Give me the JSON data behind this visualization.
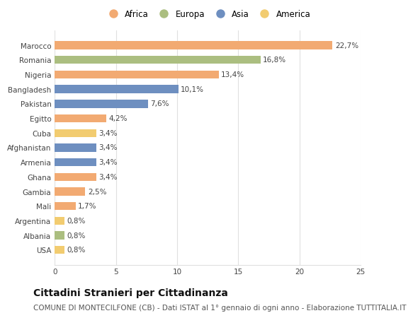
{
  "countries": [
    "Marocco",
    "Romania",
    "Nigeria",
    "Bangladesh",
    "Pakistan",
    "Egitto",
    "Cuba",
    "Afghanistan",
    "Armenia",
    "Ghana",
    "Gambia",
    "Mali",
    "Argentina",
    "Albania",
    "USA"
  ],
  "values": [
    22.7,
    16.8,
    13.4,
    10.1,
    7.6,
    4.2,
    3.4,
    3.4,
    3.4,
    3.4,
    2.5,
    1.7,
    0.8,
    0.8,
    0.8
  ],
  "labels": [
    "22,7%",
    "16,8%",
    "13,4%",
    "10,1%",
    "7,6%",
    "4,2%",
    "3,4%",
    "3,4%",
    "3,4%",
    "3,4%",
    "2,5%",
    "1,7%",
    "0,8%",
    "0,8%",
    "0,8%"
  ],
  "continents": [
    "Africa",
    "Europa",
    "Africa",
    "Asia",
    "Asia",
    "Africa",
    "America",
    "Asia",
    "Asia",
    "Africa",
    "Africa",
    "Africa",
    "America",
    "Europa",
    "America"
  ],
  "continent_colors": {
    "Africa": "#F2AA72",
    "Europa": "#ABBE80",
    "Asia": "#6E8FC0",
    "America": "#F2CC70"
  },
  "legend_order": [
    "Africa",
    "Europa",
    "Asia",
    "America"
  ],
  "background_color": "#ffffff",
  "title": "Cittadini Stranieri per Cittadinanza",
  "subtitle": "COMUNE DI MONTECILFONE (CB) - Dati ISTAT al 1° gennaio di ogni anno - Elaborazione TUTTITALIA.IT",
  "xlim": [
    0,
    25
  ],
  "xticks": [
    0,
    5,
    10,
    15,
    20,
    25
  ],
  "title_fontsize": 10,
  "subtitle_fontsize": 7.5,
  "bar_height": 0.55,
  "grid_color": "#e0e0e0",
  "label_fontsize": 7.5,
  "tick_fontsize": 7.5
}
